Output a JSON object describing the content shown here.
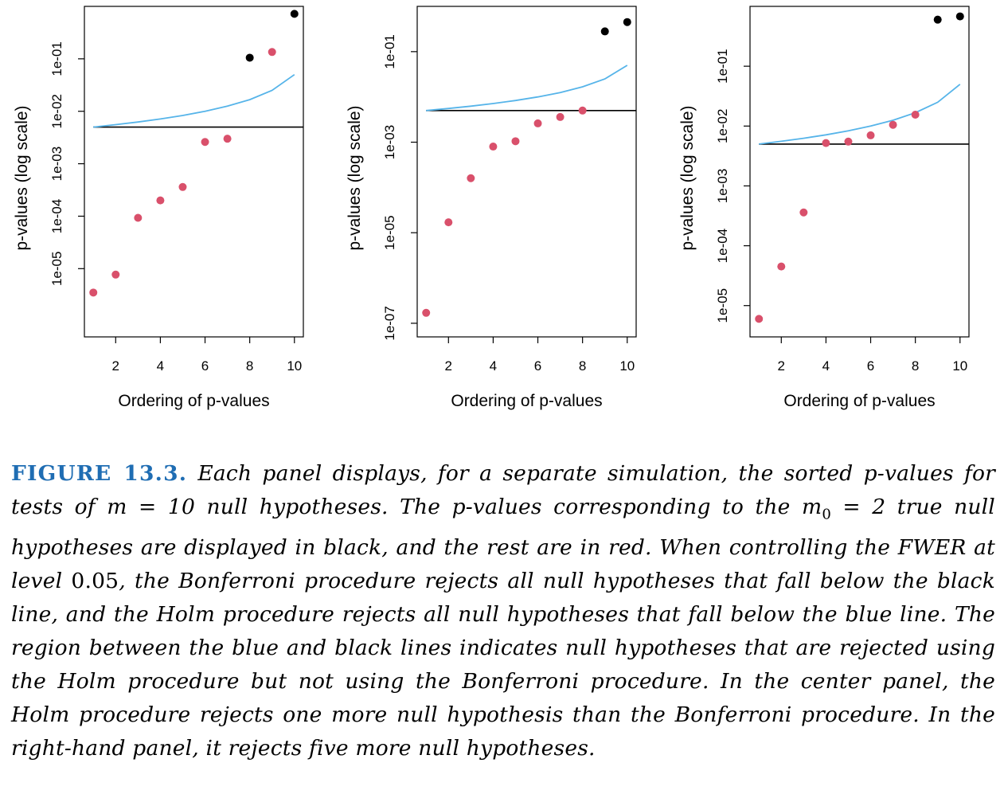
{
  "chart_data": [
    {
      "type": "scatter",
      "title": "",
      "xlabel": "Ordering of p-values",
      "ylabel": "p-values (log scale)",
      "y_scale": "log",
      "x_ticks": [
        2,
        4,
        6,
        8,
        10
      ],
      "y_ticks": [
        "1e-05",
        "1e-04",
        "1e-03",
        "1e-02",
        "1e-01"
      ],
      "y_tick_values": [
        1e-05,
        0.0001,
        0.001,
        0.01,
        0.1
      ],
      "xlim": [
        0.6,
        10.4
      ],
      "ylim": [
        5e-07,
        1.0
      ],
      "points": [
        {
          "x": 1,
          "y": 3.5e-06,
          "color": "#d9506b"
        },
        {
          "x": 2,
          "y": 7.7e-06,
          "color": "#d9506b"
        },
        {
          "x": 3,
          "y": 9.3e-05,
          "color": "#d9506b"
        },
        {
          "x": 4,
          "y": 0.0002,
          "color": "#d9506b"
        },
        {
          "x": 5,
          "y": 0.00036,
          "color": "#d9506b"
        },
        {
          "x": 6,
          "y": 0.0026,
          "color": "#d9506b"
        },
        {
          "x": 7,
          "y": 0.003,
          "color": "#d9506b"
        },
        {
          "x": 8,
          "y": 0.105,
          "color": "#000000"
        },
        {
          "x": 9,
          "y": 0.135,
          "color": "#d9506b"
        },
        {
          "x": 10,
          "y": 0.72,
          "color": "#000000"
        }
      ],
      "bonferroni_line": 0.005,
      "holm_line": [
        {
          "x": 1,
          "y": 0.005
        },
        {
          "x": 2,
          "y": 0.00556
        },
        {
          "x": 3,
          "y": 0.00625
        },
        {
          "x": 4,
          "y": 0.00714
        },
        {
          "x": 5,
          "y": 0.00833
        },
        {
          "x": 6,
          "y": 0.01
        },
        {
          "x": 7,
          "y": 0.0125
        },
        {
          "x": 8,
          "y": 0.0167
        },
        {
          "x": 9,
          "y": 0.025
        },
        {
          "x": 10,
          "y": 0.05
        }
      ],
      "colors": {
        "rejected_false_null": "#d9506b",
        "true_null": "#000000",
        "holm": "#56b4e9",
        "bonferroni": "#000000"
      }
    },
    {
      "type": "scatter",
      "title": "",
      "xlabel": "Ordering of p-values",
      "ylabel": "p-values (log scale)",
      "y_scale": "log",
      "x_ticks": [
        2,
        4,
        6,
        8,
        10
      ],
      "y_ticks": [
        "1e-07",
        "1e-05",
        "1e-03",
        "1e-01"
      ],
      "y_tick_values": [
        1e-07,
        1e-05,
        0.001,
        0.1
      ],
      "xlim": [
        0.6,
        10.4
      ],
      "ylim": [
        5e-08,
        1.0
      ],
      "points": [
        {
          "x": 1,
          "y": 1.7e-07,
          "color": "#d9506b"
        },
        {
          "x": 2,
          "y": 1.7e-05,
          "color": "#d9506b"
        },
        {
          "x": 3,
          "y": 0.00016,
          "color": "#d9506b"
        },
        {
          "x": 4,
          "y": 0.0008,
          "color": "#d9506b"
        },
        {
          "x": 5,
          "y": 0.00105,
          "color": "#d9506b"
        },
        {
          "x": 6,
          "y": 0.0026,
          "color": "#d9506b"
        },
        {
          "x": 7,
          "y": 0.0036,
          "color": "#d9506b"
        },
        {
          "x": 8,
          "y": 0.005,
          "color": "#d9506b"
        },
        {
          "x": 9,
          "y": 0.28,
          "color": "#000000"
        },
        {
          "x": 10,
          "y": 0.45,
          "color": "#000000"
        }
      ],
      "bonferroni_line": 0.005,
      "holm_line": [
        {
          "x": 1,
          "y": 0.005
        },
        {
          "x": 2,
          "y": 0.00556
        },
        {
          "x": 3,
          "y": 0.00625
        },
        {
          "x": 4,
          "y": 0.00714
        },
        {
          "x": 5,
          "y": 0.00833
        },
        {
          "x": 6,
          "y": 0.01
        },
        {
          "x": 7,
          "y": 0.0125
        },
        {
          "x": 8,
          "y": 0.0167
        },
        {
          "x": 9,
          "y": 0.025
        },
        {
          "x": 10,
          "y": 0.05
        }
      ],
      "colors": {
        "rejected_false_null": "#d9506b",
        "true_null": "#000000",
        "holm": "#56b4e9",
        "bonferroni": "#000000"
      }
    },
    {
      "type": "scatter",
      "title": "",
      "xlabel": "Ordering of p-values",
      "ylabel": "p-values (log scale)",
      "y_scale": "log",
      "x_ticks": [
        2,
        4,
        6,
        8,
        10
      ],
      "y_ticks": [
        "1e-05",
        "1e-04",
        "1e-03",
        "1e-02",
        "1e-01"
      ],
      "y_tick_values": [
        1e-05,
        0.0001,
        0.001,
        0.01,
        0.1
      ],
      "xlim": [
        0.6,
        10.4
      ],
      "ylim": [
        3e-06,
        1.0
      ],
      "points": [
        {
          "x": 1,
          "y": 6e-06,
          "color": "#d9506b"
        },
        {
          "x": 2,
          "y": 4.5e-05,
          "color": "#d9506b"
        },
        {
          "x": 3,
          "y": 0.00036,
          "color": "#d9506b"
        },
        {
          "x": 4,
          "y": 0.0052,
          "color": "#d9506b"
        },
        {
          "x": 5,
          "y": 0.0055,
          "color": "#d9506b"
        },
        {
          "x": 6,
          "y": 0.007,
          "color": "#d9506b"
        },
        {
          "x": 7,
          "y": 0.0105,
          "color": "#d9506b"
        },
        {
          "x": 8,
          "y": 0.0155,
          "color": "#d9506b"
        },
        {
          "x": 9,
          "y": 0.6,
          "color": "#000000"
        },
        {
          "x": 10,
          "y": 0.68,
          "color": "#000000"
        }
      ],
      "bonferroni_line": 0.005,
      "holm_line": [
        {
          "x": 1,
          "y": 0.005
        },
        {
          "x": 2,
          "y": 0.00556
        },
        {
          "x": 3,
          "y": 0.00625
        },
        {
          "x": 4,
          "y": 0.00714
        },
        {
          "x": 5,
          "y": 0.00833
        },
        {
          "x": 6,
          "y": 0.01
        },
        {
          "x": 7,
          "y": 0.0125
        },
        {
          "x": 8,
          "y": 0.0167
        },
        {
          "x": 9,
          "y": 0.025
        },
        {
          "x": 10,
          "y": 0.05
        }
      ],
      "colors": {
        "rejected_false_null": "#d9506b",
        "true_null": "#000000",
        "holm": "#56b4e9",
        "bonferroni": "#000000"
      }
    }
  ],
  "caption": {
    "label": "FIGURE 13.3.",
    "text_1": " Each panel displays, for a separate simulation, the sorted p-values for tests of ",
    "m": "m",
    "text_2": " = 10 null hypotheses. The p-values corresponding to the ",
    "m0": "m",
    "m0_sub": "0",
    "text_3": " = 2 true null hypotheses are displayed in black, and the rest are in red. When controlling the FWER at level ",
    "level": "0.05",
    "text_4": ", the Bonferroni procedure rejects all null hypotheses that fall below the black line, and the Holm procedure rejects all null hypotheses that fall below the blue line. The region between the blue and black lines indicates null hypotheses that are rejected using the Holm procedure but not using the Bonferroni procedure. In the center panel, the Holm procedure rejects one more null hypothesis than the Bonferroni procedure. In the right-hand panel, it rejects five more null hypotheses."
  }
}
